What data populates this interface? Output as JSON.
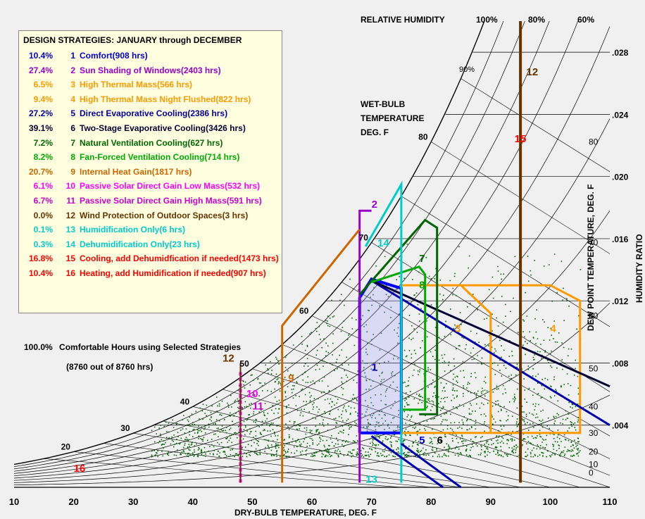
{
  "legend": {
    "title": "DESIGN STRATEGIES:  JANUARY through DECEMBER",
    "items": [
      {
        "pct": "10.4%",
        "num": "1",
        "label": "Comfort(908 hrs)",
        "color": "#0000cc"
      },
      {
        "pct": "27.4%",
        "num": "2",
        "label": "Sun Shading of Windows(2403 hrs)",
        "color": "#9900cc"
      },
      {
        "pct": "6.5%",
        "num": "3",
        "label": "High Thermal Mass(566 hrs)",
        "color": "#ff9900"
      },
      {
        "pct": "9.4%",
        "num": "4",
        "label": "High Thermal Mass Night Flushed(822 hrs)",
        "color": "#ff9900"
      },
      {
        "pct": "27.2%",
        "num": "5",
        "label": "Direct Evaporative Cooling(2386 hrs)",
        "color": "#000099"
      },
      {
        "pct": "39.1%",
        "num": "6",
        "label": "Two-Stage Evaporative Cooling(3426 hrs)",
        "color": "#000033"
      },
      {
        "pct": "7.2%",
        "num": "7",
        "label": "Natural Ventilation Cooling(627 hrs)",
        "color": "#006600"
      },
      {
        "pct": "8.2%",
        "num": "8",
        "label": "Fan-Forced Ventilation Cooling(714 hrs)",
        "color": "#00aa00"
      },
      {
        "pct": "20.7%",
        "num": "9",
        "label": "Internal Heat Gain(1817 hrs)",
        "color": "#cc6600"
      },
      {
        "pct": "6.1%",
        "num": "10",
        "label": "Passive Solar Direct Gain Low Mass(532 hrs)",
        "color": "#ff00ff"
      },
      {
        "pct": "6.7%",
        "num": "11",
        "label": "Passive Solar Direct Gain High Mass(591 hrs)",
        "color": "#cc00cc"
      },
      {
        "pct": "0.0%",
        "num": "12",
        "label": "Wind Protection of Outdoor Spaces(3 hrs)",
        "color": "#663300"
      },
      {
        "pct": "0.1%",
        "num": "13",
        "label": "Humidification Only(6 hrs)",
        "color": "#00cccc"
      },
      {
        "pct": "0.3%",
        "num": "14",
        "label": "Dehumidification Only(23 hrs)",
        "color": "#00cccc"
      },
      {
        "pct": "16.8%",
        "num": "15",
        "label": "Cooling, add Dehumidfication if needed(1473 hrs)",
        "color": "#ff0000"
      },
      {
        "pct": "10.4%",
        "num": "16",
        "label": "Heating, add Humidification if needed(907 hrs)",
        "color": "#ff0000"
      }
    ]
  },
  "summary": {
    "pct": "100.0%",
    "line1": "Comfortable Hours using Selected Strategies",
    "line2": "(8760 out of 8760 hrs)"
  },
  "chart_data": {
    "type": "scatter",
    "title": "",
    "xlabel": "DRY-BULB TEMPERATURE, DEG. F",
    "ylabel": "HUMIDITY RATIO",
    "right_axis_label": "DEW POINT TEMPERATURE, DEG. F",
    "xlim": [
      10,
      110
    ],
    "ylim": [
      0,
      0.03
    ],
    "xticks": [
      "10",
      "20",
      "30",
      "40",
      "50",
      "60",
      "70",
      "80",
      "90",
      "100",
      "110"
    ],
    "yticks": [
      ".004",
      ".008",
      ".012",
      ".016",
      ".020",
      ".024",
      ".028"
    ],
    "rh_header": "RELATIVE HUMIDITY",
    "rh_labels": [
      "100%",
      "80%",
      "60%",
      "90%"
    ],
    "wetbulb_title": [
      "WET-BULB",
      "TEMPERATURE",
      "DEG. F"
    ],
    "wetbulb_labels": [
      "20",
      "30",
      "40",
      "50",
      "60",
      "70",
      "80"
    ],
    "dewpoint_labels": [
      "80",
      "70",
      "60",
      "50",
      "40",
      "30",
      "20",
      "10",
      "0"
    ],
    "point_count": 8760,
    "point_color": "#006600",
    "zones": [
      {
        "id": "1",
        "color": "#0000ff"
      },
      {
        "id": "2",
        "color": "#9900cc"
      },
      {
        "id": "3",
        "color": "#ff9900"
      },
      {
        "id": "4",
        "color": "#ff9900"
      },
      {
        "id": "5",
        "color": "#0000aa"
      },
      {
        "id": "6",
        "color": "#000033"
      },
      {
        "id": "7",
        "color": "#006600"
      },
      {
        "id": "8",
        "color": "#00aa00"
      },
      {
        "id": "9",
        "color": "#cc6600"
      },
      {
        "id": "10",
        "color": "#ff00ff"
      },
      {
        "id": "11",
        "color": "#cc00cc"
      },
      {
        "id": "12",
        "color": "#663300"
      },
      {
        "id": "13",
        "color": "#00cccc"
      },
      {
        "id": "14",
        "color": "#00cccc"
      },
      {
        "id": "15",
        "color": "#ff0000"
      },
      {
        "id": "16",
        "color": "#ff0000"
      }
    ]
  }
}
